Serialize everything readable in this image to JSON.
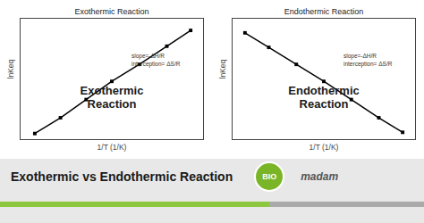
{
  "title": "Exothermic vs Endothermic Reaction",
  "annotations": [
    "BIO",
    "madam"
  ],
  "chart_data": [
    {
      "type": "line",
      "title": "Exothermic Reaction",
      "xlabel": "1/T (1/K)",
      "ylabel": "lnKeq",
      "x": [
        0.08,
        0.22,
        0.36,
        0.5,
        0.65,
        0.8,
        0.93
      ],
      "values": [
        0.05,
        0.18,
        0.33,
        0.48,
        0.62,
        0.77,
        0.9
      ],
      "color": "#000000",
      "marker": "square",
      "xlim": [
        0,
        1
      ],
      "ylim": [
        0,
        1
      ],
      "tick_labels": false,
      "grid": false,
      "annotations": [
        "Exothermic\nReaction",
        "slope=-ΔH/R\ninterception= ΔS/R"
      ]
    },
    {
      "type": "line",
      "title": "Endothermic Reaction",
      "xlabel": "1/T (1/K)",
      "ylabel": "lnKeq",
      "x": [
        0.07,
        0.2,
        0.35,
        0.5,
        0.65,
        0.8,
        0.93
      ],
      "values": [
        0.88,
        0.76,
        0.62,
        0.48,
        0.33,
        0.18,
        0.06
      ],
      "color": "#000000",
      "marker": "square",
      "xlim": [
        0,
        1
      ],
      "ylim": [
        0,
        1
      ],
      "tick_labels": false,
      "grid": false,
      "annotations": [
        "Endothermic\nReaction",
        "slope=-ΔH/R\ninterception= ΔS/R"
      ]
    }
  ]
}
